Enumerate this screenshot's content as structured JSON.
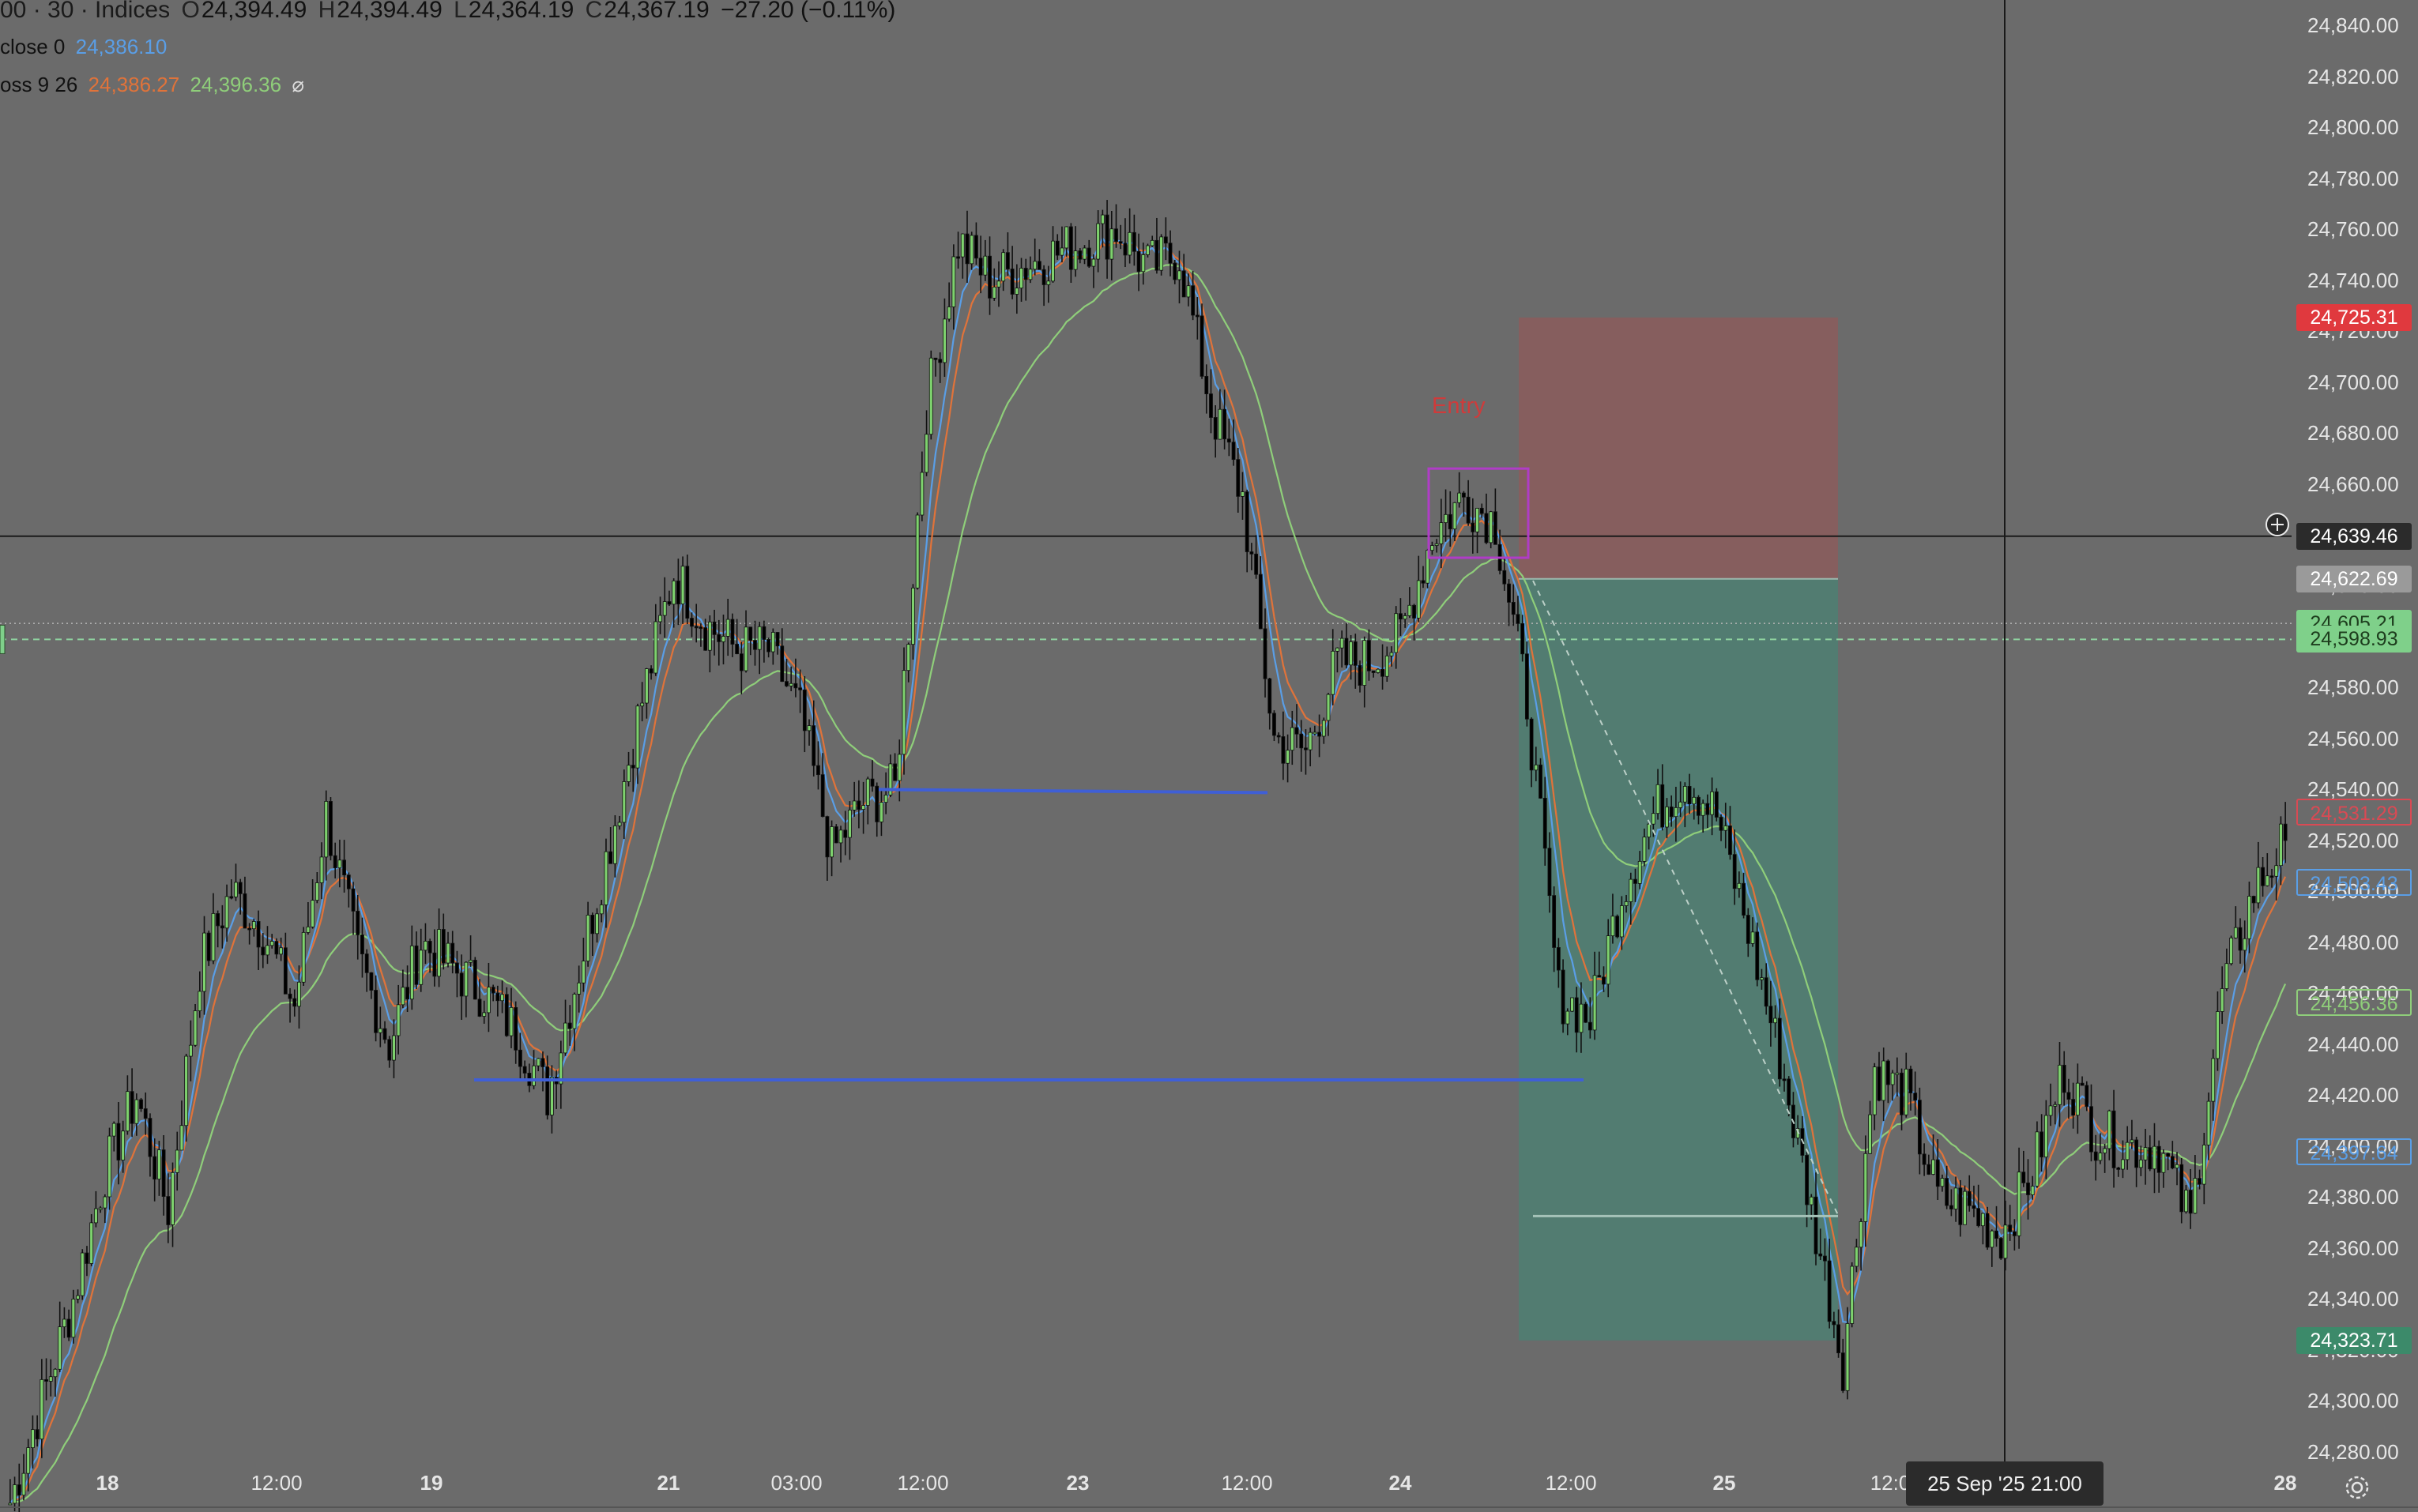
{
  "legend": {
    "symbol": "00 · 30 · Indices",
    "ohlc": [
      {
        "k": "O",
        "v": "24,394.49"
      },
      {
        "k": "H",
        "v": "24,394.49"
      },
      {
        "k": "L",
        "v": "24,364.19"
      },
      {
        "k": "C",
        "v": "24,367.19"
      }
    ],
    "change": "−27.20 (−0.11%)",
    "indicator1_name": "close 0",
    "indicator1_value": "24,386.10",
    "indicator2_name": "oss 9 26",
    "indicator2_value_a": "24,386.27",
    "indicator2_value_b": "24,396.36",
    "indicator2_symbol": "⌀"
  },
  "colors": {
    "background": "#6b6b6b",
    "bull_candle": "#7ed26e",
    "bear_candle": "#000000",
    "ema_blue": "#5a9ee6",
    "ema_orange": "#e0733a",
    "ema_green": "#8fce7a",
    "stop_zone": "#8b5c5c",
    "target_zone": "#4e7f72",
    "support_line": "#3f5fd6",
    "entry_box": "#b03cc7",
    "entry_text": "#cf3b3b"
  },
  "price_axis": {
    "min": 24270,
    "max": 24845,
    "ticks": [
      "24,840.00",
      "24,820.00",
      "24,800.00",
      "24,780.00",
      "24,760.00",
      "24,740.00",
      "24,720.00",
      "24,700.00",
      "24,680.00",
      "24,660.00",
      "24,640.00",
      "24,620.00",
      "24,600.00",
      "24,580.00",
      "24,560.00",
      "24,540.00",
      "24,520.00",
      "24,500.00",
      "24,480.00",
      "24,460.00",
      "24,440.00",
      "24,420.00",
      "24,400.00",
      "24,380.00",
      "24,360.00",
      "24,340.00",
      "24,320.00",
      "24,300.00",
      "24,280.00"
    ]
  },
  "price_tags": [
    {
      "text": "24,725.31",
      "price": 24725.31,
      "bg": "#e0393e",
      "fg": "#ffffff",
      "border": "none"
    },
    {
      "text": "24,639.46",
      "price": 24639.46,
      "bg": "#2b2b2b",
      "fg": "#ffffff",
      "border": "none"
    },
    {
      "text": "24,622.69",
      "price": 24622.69,
      "bg": "#9a9a9a",
      "fg": "#ffffff",
      "border": "none"
    },
    {
      "text": "24,605.21",
      "price": 24605.21,
      "bg": "#7fd08a",
      "fg": "#1d3d1d",
      "border": "none"
    },
    {
      "text": "24,598.93",
      "price": 24598.93,
      "bg": "#7fd08a",
      "fg": "#1d3d1d",
      "border": "none"
    },
    {
      "text": "24,531.29",
      "price": 24531.29,
      "bg": "transparent",
      "fg": "#d94a54",
      "border": "#d94a54"
    },
    {
      "text": "24,503.43",
      "price": 24503.43,
      "bg": "transparent",
      "fg": "#5a9ee6",
      "border": "#5a9ee6"
    },
    {
      "text": "24,456.36",
      "price": 24456.36,
      "bg": "transparent",
      "fg": "#8fce7a",
      "border": "#8fce7a"
    },
    {
      "text": "24,397.64",
      "price": 24397.64,
      "bg": "transparent",
      "fg": "#5a9ee6",
      "border": "#5a9ee6"
    },
    {
      "text": "24,323.71",
      "price": 24323.71,
      "bg": "#3c8a6a",
      "fg": "#ffffff",
      "border": "none"
    }
  ],
  "time_axis": [
    {
      "text": "18",
      "bold": true
    },
    {
      "text": "12:00",
      "bold": false
    },
    {
      "text": "19",
      "bold": true
    },
    {
      "text": "21",
      "bold": true
    },
    {
      "text": "03:00",
      "bold": false
    },
    {
      "text": "12:00",
      "bold": false
    },
    {
      "text": "23",
      "bold": true
    },
    {
      "text": "12:00",
      "bold": false
    },
    {
      "text": "24",
      "bold": true
    },
    {
      "text": "12:00",
      "bold": false
    },
    {
      "text": "25",
      "bold": true
    },
    {
      "text": "12:0",
      "bold": false
    },
    {
      "text": "28",
      "bold": true
    }
  ],
  "crosshair": {
    "time": "25 Sep '25   21:00",
    "price": "24,639.46"
  },
  "position": {
    "entry_label": "Entry",
    "entry": 24622.69,
    "stop": 24725.31,
    "target": 24323.71
  },
  "support_lines": [
    {
      "price": 24540
    },
    {
      "price": 24426
    }
  ],
  "chart_data": {
    "type": "line",
    "title": "",
    "xlabel": "",
    "ylabel": "",
    "ylim": [
      24270,
      24845
    ],
    "series": [
      {
        "values": [
          24260,
          24300,
          24340,
          24390,
          24420,
          24375,
          24470,
          24500,
          24485,
          24455,
          24530,
          24475,
          24440,
          24480,
          24470,
          24460,
          24445,
          24420,
          24470,
          24520,
          24575,
          24625,
          24605,
          24595,
          24595,
          24570,
          24515,
          24535,
          24540,
          24690,
          24755,
          24740,
          24745,
          24750,
          24755,
          24760,
          24745,
          24750,
          24690,
          24655,
          24560,
          24555,
          24590,
          24590,
          24600,
          24640,
          24655,
          24645,
          24575,
          24460,
          24450,
          24500,
          24530,
          24545,
          24530,
          24485,
          24435,
          24375,
          24315,
          24430,
          24420,
          24380,
          24375,
          24365,
          24390,
          24430,
          24405,
          24400,
          24400,
          24370,
          24460,
          24500,
          24520
        ],
        "description_hint": "approximate closing prices, 30-minute bars"
      }
    ]
  }
}
